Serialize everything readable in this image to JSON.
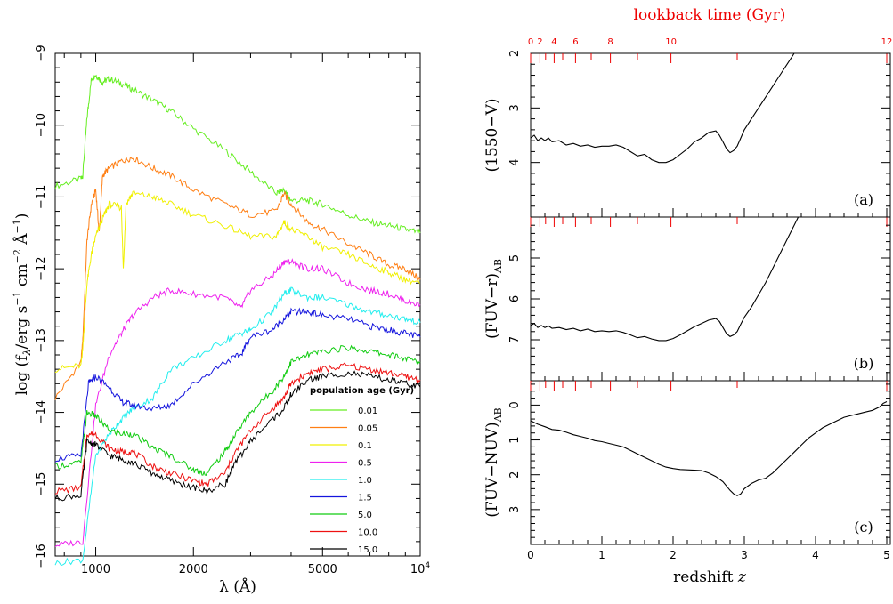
{
  "chart_data": [
    {
      "id": "left",
      "type": "line",
      "xscale": "log",
      "xlim": [
        750,
        10000
      ],
      "ylim": [
        -16,
        -9
      ],
      "xticks": [
        {
          "value": 1000,
          "label": "1000"
        },
        {
          "value": 2000,
          "label": "2000"
        },
        {
          "value": 5000,
          "label": "5000"
        },
        {
          "value": 10000,
          "label": "10",
          "sup": "4"
        }
      ],
      "yticks": [
        {
          "value": -9,
          "label": "−9"
        },
        {
          "value": -10,
          "label": "−10"
        },
        {
          "value": -11,
          "label": "−11"
        },
        {
          "value": -12,
          "label": "−12"
        },
        {
          "value": -13,
          "label": "−13"
        },
        {
          "value": -14,
          "label": "−14"
        },
        {
          "value": -15,
          "label": "−15"
        },
        {
          "value": -16,
          "label": "−16"
        }
      ],
      "xlabel": "λ (Å)",
      "ylabel": {
        "pre": "log (f",
        "sub": "λ",
        "mid": "/erg s",
        "sup1": "−1",
        "mid2": " cm",
        "sup2": "−2",
        "mid3": " Å",
        "sup3": "−1",
        "post": ")"
      },
      "legend": {
        "title": "population age (Gyr)",
        "placement": "lower-right",
        "entries": [
          "0.01",
          "0.05",
          "0.1",
          "0.5",
          "1.0",
          "1.5",
          "5.0",
          "10.0",
          "15.0"
        ]
      },
      "series": [
        {
          "name": "0.01",
          "color": "#66ee22",
          "x": [
            750,
            900,
            912,
            940,
            970,
            1000,
            1050,
            1100,
            1200,
            1300,
            1500,
            1700,
            2000,
            2500,
            3000,
            3600,
            3800,
            4000,
            4500,
            5000,
            6000,
            7000,
            8000,
            9000,
            10000
          ],
          "y": [
            -10.85,
            -10.75,
            -10.7,
            -9.9,
            -9.35,
            -9.3,
            -9.4,
            -9.35,
            -9.42,
            -9.5,
            -9.65,
            -9.8,
            -10.05,
            -10.35,
            -10.65,
            -10.95,
            -10.9,
            -11.05,
            -11.05,
            -11.1,
            -11.25,
            -11.35,
            -11.4,
            -11.45,
            -11.5
          ]
        },
        {
          "name": "0.05",
          "color": "#ff7f14",
          "x": [
            750,
            900,
            912,
            940,
            970,
            1000,
            1025,
            1050,
            1100,
            1200,
            1300,
            1500,
            1700,
            2000,
            2500,
            3000,
            3600,
            3800,
            4000,
            4500,
            5000,
            6000,
            7000,
            8000,
            9000,
            10000
          ],
          "y": [
            -13.8,
            -13.3,
            -13.0,
            -11.6,
            -11.1,
            -10.9,
            -11.5,
            -10.7,
            -10.6,
            -10.5,
            -10.45,
            -10.6,
            -10.7,
            -10.9,
            -11.1,
            -11.25,
            -11.2,
            -10.95,
            -11.1,
            -11.35,
            -11.45,
            -11.65,
            -11.8,
            -11.95,
            -12.0,
            -12.15
          ]
        },
        {
          "name": "0.1",
          "color": "#f0f000",
          "x": [
            750,
            900,
            912,
            940,
            970,
            1000,
            1050,
            1100,
            1200,
            1216,
            1240,
            1300,
            1500,
            1700,
            2000,
            2500,
            3000,
            3600,
            3800,
            4000,
            4500,
            5000,
            6000,
            7000,
            8000,
            9000,
            10000
          ],
          "y": [
            -13.4,
            -13.35,
            -13.1,
            -12.2,
            -11.8,
            -11.55,
            -11.3,
            -11.1,
            -11.15,
            -12.0,
            -11.1,
            -10.95,
            -11.0,
            -11.1,
            -11.25,
            -11.4,
            -11.55,
            -11.55,
            -11.35,
            -11.45,
            -11.55,
            -11.7,
            -11.8,
            -11.95,
            -12.05,
            -12.15,
            -12.2
          ]
        },
        {
          "name": "0.5",
          "color": "#ee22ee",
          "x": [
            750,
            912,
            1000,
            1100,
            1200,
            1300,
            1500,
            1700,
            2000,
            2500,
            2800,
            3000,
            3500,
            3800,
            4000,
            4500,
            5000,
            6000,
            7000,
            8000,
            9000,
            10000
          ],
          "y": [
            -15.85,
            -15.8,
            -13.9,
            -13.2,
            -12.9,
            -12.65,
            -12.4,
            -12.3,
            -12.35,
            -12.4,
            -12.55,
            -12.3,
            -12.1,
            -11.9,
            -11.9,
            -12.0,
            -12.0,
            -12.2,
            -12.3,
            -12.35,
            -12.45,
            -12.5
          ]
        },
        {
          "name": "1.0",
          "color": "#22eeee",
          "x": [
            750,
            912,
            1000,
            1100,
            1200,
            1300,
            1500,
            1700,
            2000,
            2500,
            2800,
            3000,
            3500,
            3800,
            4000,
            4500,
            5000,
            6000,
            7000,
            8000,
            9000,
            10000
          ],
          "y": [
            -16.1,
            -16.05,
            -14.6,
            -14.3,
            -14.1,
            -13.95,
            -13.8,
            -13.4,
            -13.25,
            -13.0,
            -12.9,
            -12.85,
            -12.6,
            -12.35,
            -12.3,
            -12.4,
            -12.4,
            -12.5,
            -12.6,
            -12.65,
            -12.7,
            -12.75
          ]
        },
        {
          "name": "1.5",
          "color": "#1414dd",
          "x": [
            750,
            900,
            950,
            1000,
            1100,
            1200,
            1300,
            1500,
            1700,
            2000,
            2500,
            2800,
            3000,
            3500,
            3800,
            4000,
            4500,
            5000,
            6000,
            7000,
            8000,
            9000,
            10000
          ],
          "y": [
            -14.65,
            -14.6,
            -13.6,
            -13.5,
            -13.65,
            -13.85,
            -13.9,
            -13.95,
            -13.9,
            -13.6,
            -13.3,
            -13.2,
            -12.95,
            -12.85,
            -12.7,
            -12.6,
            -12.6,
            -12.65,
            -12.7,
            -12.8,
            -12.85,
            -12.9,
            -12.95
          ]
        },
        {
          "name": "5.0",
          "color": "#11cc11",
          "x": [
            750,
            900,
            940,
            1000,
            1100,
            1200,
            1300,
            1500,
            1700,
            2000,
            2200,
            2500,
            2700,
            3000,
            3500,
            3800,
            4000,
            4500,
            5000,
            6000,
            7000,
            8000,
            9000,
            10000
          ],
          "y": [
            -14.75,
            -14.7,
            -14.0,
            -14.05,
            -14.25,
            -14.3,
            -14.3,
            -14.5,
            -14.6,
            -14.8,
            -14.85,
            -14.55,
            -14.3,
            -14.0,
            -13.7,
            -13.5,
            -13.3,
            -13.2,
            -13.15,
            -13.1,
            -13.15,
            -13.2,
            -13.25,
            -13.3
          ]
        },
        {
          "name": "10.0",
          "color": "#ee1111",
          "x": [
            750,
            900,
            940,
            1000,
            1100,
            1200,
            1300,
            1500,
            1700,
            2000,
            2200,
            2500,
            2700,
            3000,
            3500,
            3800,
            4000,
            4500,
            5000,
            6000,
            7000,
            8000,
            9000,
            10000
          ],
          "y": [
            -15.1,
            -15.05,
            -14.3,
            -14.3,
            -14.5,
            -14.55,
            -14.55,
            -14.75,
            -14.85,
            -14.95,
            -15.0,
            -14.85,
            -14.55,
            -14.25,
            -13.95,
            -13.8,
            -13.6,
            -13.45,
            -13.4,
            -13.35,
            -13.4,
            -13.45,
            -13.5,
            -13.55
          ]
        },
        {
          "name": "15.0",
          "color": "#000000",
          "x": [
            750,
            900,
            940,
            1000,
            1100,
            1200,
            1300,
            1500,
            1700,
            2000,
            2200,
            2500,
            2700,
            3000,
            3500,
            3800,
            4000,
            4500,
            5000,
            6000,
            7000,
            8000,
            9000,
            10000
          ],
          "y": [
            -15.2,
            -15.15,
            -14.4,
            -14.45,
            -14.6,
            -14.65,
            -14.7,
            -14.85,
            -14.95,
            -15.05,
            -15.1,
            -15.0,
            -14.7,
            -14.4,
            -14.1,
            -13.95,
            -13.75,
            -13.55,
            -13.5,
            -13.45,
            -13.5,
            -13.55,
            -13.6,
            -13.65
          ]
        }
      ]
    },
    {
      "id": "right",
      "type": "line",
      "xlim": [
        0,
        5.05
      ],
      "xlabel": "redshift",
      "xlabel_var": "z",
      "xticks": [
        {
          "value": 0,
          "label": "0"
        },
        {
          "value": 1,
          "label": "1"
        },
        {
          "value": 2,
          "label": "2"
        },
        {
          "value": 3,
          "label": "3"
        },
        {
          "value": 4,
          "label": "4"
        },
        {
          "value": 5,
          "label": "5"
        }
      ],
      "top_axis": {
        "label": "lookback time (Gyr)",
        "color": "#ee0000",
        "ticks": [
          {
            "z": 0.0,
            "label": "0"
          },
          {
            "z": 0.13,
            "label": "2"
          },
          {
            "z": 0.21,
            "label": "",
            "minor": true
          },
          {
            "z": 0.33,
            "label": "4"
          },
          {
            "z": 0.45,
            "label": "",
            "minor": true
          },
          {
            "z": 0.63,
            "label": "6"
          },
          {
            "z": 0.85,
            "label": "",
            "minor": true
          },
          {
            "z": 1.12,
            "label": "8"
          },
          {
            "z": 1.5,
            "label": "",
            "minor": true
          },
          {
            "z": 1.97,
            "label": "10"
          },
          {
            "z": 2.9,
            "label": "",
            "minor": true
          },
          {
            "z": 5.0,
            "label": "12"
          }
        ]
      },
      "panels": [
        {
          "tag": "(a)",
          "ylabel": {
            "pre": "(1550−V)",
            "sub": ""
          },
          "ylim": [
            5,
            2
          ],
          "yticks": [
            {
              "value": 2,
              "label": "2"
            },
            {
              "value": 3,
              "label": "3"
            },
            {
              "value": 4,
              "label": "4"
            }
          ],
          "x": [
            0,
            0.05,
            0.1,
            0.15,
            0.2,
            0.25,
            0.3,
            0.4,
            0.5,
            0.6,
            0.7,
            0.8,
            0.9,
            1.0,
            1.1,
            1.2,
            1.3,
            1.4,
            1.5,
            1.6,
            1.7,
            1.8,
            1.9,
            2.0,
            2.1,
            2.2,
            2.3,
            2.4,
            2.5,
            2.6,
            2.65,
            2.7,
            2.75,
            2.8,
            2.85,
            2.9,
            2.95,
            3.0,
            3.1,
            3.2,
            3.3,
            3.4,
            3.5,
            3.6,
            3.7,
            3.8
          ],
          "y": [
            3.55,
            3.5,
            3.6,
            3.55,
            3.6,
            3.55,
            3.62,
            3.6,
            3.68,
            3.65,
            3.7,
            3.68,
            3.72,
            3.7,
            3.7,
            3.68,
            3.72,
            3.8,
            3.88,
            3.85,
            3.95,
            4.0,
            4.0,
            3.95,
            3.85,
            3.75,
            3.62,
            3.55,
            3.45,
            3.42,
            3.5,
            3.62,
            3.75,
            3.82,
            3.78,
            3.7,
            3.55,
            3.4,
            3.2,
            3.0,
            2.8,
            2.6,
            2.4,
            2.2,
            2.0,
            1.8
          ]
        },
        {
          "tag": "(b)",
          "ylabel": {
            "pre": "(FUV−r)",
            "sub": "AB"
          },
          "ylim": [
            8,
            4
          ],
          "yticks": [
            {
              "value": 5,
              "label": "5"
            },
            {
              "value": 6,
              "label": "6"
            },
            {
              "value": 7,
              "label": "7"
            }
          ],
          "x": [
            0,
            0.05,
            0.1,
            0.15,
            0.2,
            0.25,
            0.3,
            0.4,
            0.5,
            0.6,
            0.7,
            0.8,
            0.9,
            1.0,
            1.1,
            1.2,
            1.3,
            1.4,
            1.5,
            1.6,
            1.7,
            1.8,
            1.9,
            2.0,
            2.1,
            2.2,
            2.3,
            2.4,
            2.5,
            2.6,
            2.65,
            2.7,
            2.75,
            2.8,
            2.85,
            2.9,
            2.95,
            3.0,
            3.1,
            3.2,
            3.3,
            3.4,
            3.5,
            3.6,
            3.7,
            3.8
          ],
          "y": [
            6.65,
            6.6,
            6.7,
            6.65,
            6.7,
            6.66,
            6.72,
            6.7,
            6.75,
            6.72,
            6.78,
            6.74,
            6.8,
            6.78,
            6.8,
            6.78,
            6.82,
            6.88,
            6.95,
            6.92,
            6.98,
            7.02,
            7.02,
            6.97,
            6.88,
            6.78,
            6.68,
            6.6,
            6.52,
            6.48,
            6.55,
            6.7,
            6.85,
            6.92,
            6.88,
            6.8,
            6.62,
            6.45,
            6.2,
            5.9,
            5.6,
            5.25,
            4.9,
            4.55,
            4.2,
            3.85
          ]
        },
        {
          "tag": "(c)",
          "ylabel": {
            "pre": "(FUV−NUV)",
            "sub": "AB"
          },
          "ylim": [
            4,
            -0.7
          ],
          "yticks": [
            {
              "value": 0,
              "label": "0"
            },
            {
              "value": 1,
              "label": "1"
            },
            {
              "value": 2,
              "label": "2"
            },
            {
              "value": 3,
              "label": "3"
            }
          ],
          "x": [
            0,
            0.1,
            0.2,
            0.3,
            0.4,
            0.5,
            0.6,
            0.7,
            0.8,
            0.9,
            1.0,
            1.1,
            1.2,
            1.3,
            1.4,
            1.5,
            1.6,
            1.7,
            1.8,
            1.9,
            2.0,
            2.1,
            2.2,
            2.3,
            2.4,
            2.5,
            2.6,
            2.7,
            2.8,
            2.85,
            2.9,
            2.95,
            3.0,
            3.1,
            3.2,
            3.3,
            3.4,
            3.5,
            3.6,
            3.7,
            3.8,
            3.9,
            4.0,
            4.1,
            4.2,
            4.3,
            4.4,
            4.5,
            4.6,
            4.7,
            4.8,
            4.9,
            4.95,
            5.0
          ],
          "y": [
            0.45,
            0.55,
            0.62,
            0.7,
            0.72,
            0.78,
            0.85,
            0.9,
            0.95,
            1.02,
            1.05,
            1.1,
            1.15,
            1.2,
            1.3,
            1.4,
            1.5,
            1.6,
            1.7,
            1.78,
            1.82,
            1.85,
            1.86,
            1.87,
            1.88,
            1.95,
            2.05,
            2.2,
            2.45,
            2.55,
            2.6,
            2.55,
            2.4,
            2.25,
            2.15,
            2.1,
            1.95,
            1.75,
            1.55,
            1.35,
            1.15,
            0.95,
            0.8,
            0.65,
            0.55,
            0.45,
            0.35,
            0.3,
            0.25,
            0.2,
            0.15,
            0.05,
            -0.05,
            -0.1
          ]
        }
      ]
    }
  ]
}
